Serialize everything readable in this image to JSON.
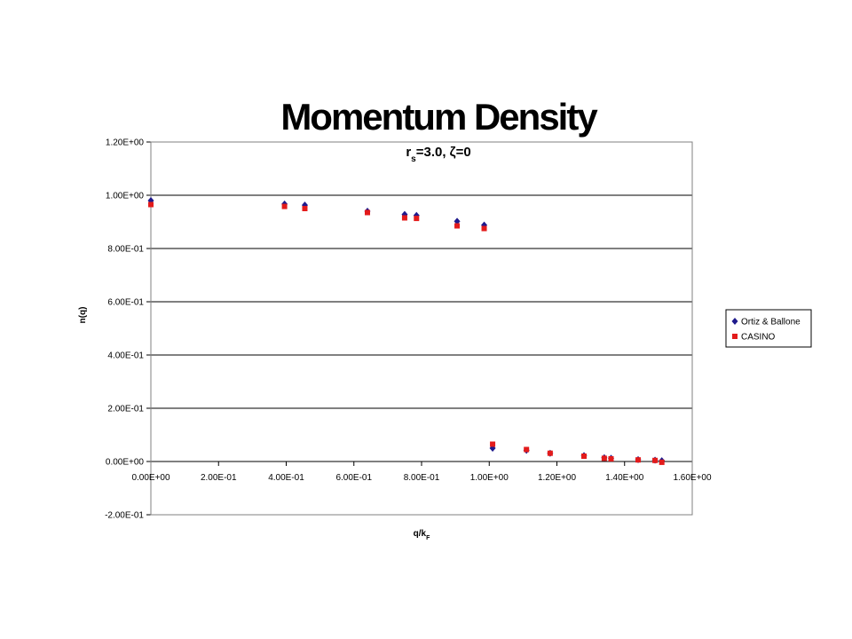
{
  "chart_data": {
    "type": "scatter",
    "title": "Momentum Density",
    "subtitle": {
      "r": "r",
      "sub": "s",
      "rest": "=3.0, ζ=0"
    },
    "xlabel": {
      "main": "q/k",
      "sub": "F"
    },
    "ylabel": "n(q)",
    "xlim": [
      0,
      1.6
    ],
    "ylim": [
      -0.2,
      1.2
    ],
    "xticks": [
      0,
      0.2,
      0.4,
      0.6,
      0.8,
      1.0,
      1.2,
      1.4,
      1.6
    ],
    "xtick_labels": [
      "0.00E+00",
      "2.00E-01",
      "4.00E-01",
      "6.00E-01",
      "8.00E-01",
      "1.00E+00",
      "1.20E+00",
      "1.40E+00",
      "1.60E+00"
    ],
    "yticks": [
      -0.2,
      0,
      0.2,
      0.4,
      0.6,
      0.8,
      1.0,
      1.2
    ],
    "ytick_labels": [
      "-2.00E-01",
      "0.00E+00",
      "2.00E-01",
      "4.00E-01",
      "6.00E-01",
      "8.00E-01",
      "1.00E+00",
      "1.20E+00"
    ],
    "grid": "horizontal",
    "legend_position": "right",
    "series": [
      {
        "name": "Ortiz & Ballone",
        "marker": "diamond",
        "color": "#1f1a8c",
        "points": [
          [
            0.0,
            0.98
          ],
          [
            0.395,
            0.967
          ],
          [
            0.455,
            0.963
          ],
          [
            0.64,
            0.94
          ],
          [
            0.75,
            0.928
          ],
          [
            0.785,
            0.924
          ],
          [
            0.905,
            0.902
          ],
          [
            0.985,
            0.888
          ],
          [
            1.01,
            0.05
          ],
          [
            1.11,
            0.042
          ],
          [
            1.18,
            0.031
          ],
          [
            1.28,
            0.022
          ],
          [
            1.34,
            0.014
          ],
          [
            1.36,
            0.012
          ],
          [
            1.44,
            0.007
          ],
          [
            1.49,
            0.005
          ],
          [
            1.51,
            0.003
          ]
        ]
      },
      {
        "name": "CASINO",
        "marker": "square",
        "color": "#e31b1b",
        "points": [
          [
            0.0,
            0.965
          ],
          [
            0.395,
            0.958
          ],
          [
            0.455,
            0.95
          ],
          [
            0.64,
            0.935
          ],
          [
            0.75,
            0.915
          ],
          [
            0.785,
            0.913
          ],
          [
            0.905,
            0.885
          ],
          [
            0.985,
            0.875
          ],
          [
            1.01,
            0.065
          ],
          [
            1.11,
            0.045
          ],
          [
            1.18,
            0.031
          ],
          [
            1.28,
            0.02
          ],
          [
            1.34,
            0.012
          ],
          [
            1.36,
            0.01
          ],
          [
            1.44,
            0.006
          ],
          [
            1.49,
            0.004
          ],
          [
            1.51,
            -0.003
          ]
        ]
      }
    ]
  }
}
